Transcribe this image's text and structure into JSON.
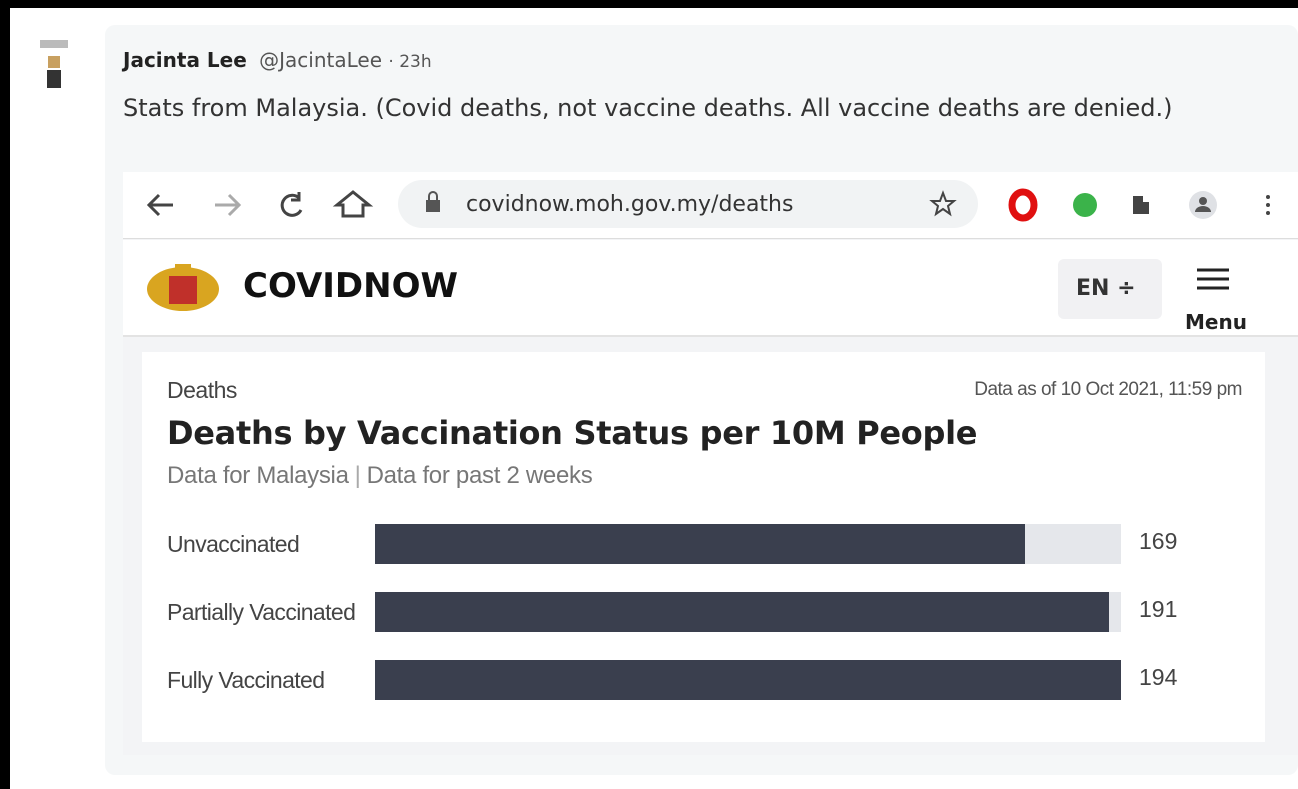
{
  "post": {
    "author": "Jacinta Lee",
    "handle": "@JacintaLee",
    "time": "· 23h",
    "text": "Stats from Malaysia. (Covid deaths, not vaccine deaths. All vaccine deaths are denied.)"
  },
  "browser": {
    "url": "covidnow.moh.gov.my/deaths"
  },
  "site": {
    "brand": "COVIDNOW",
    "language": "EN ÷",
    "menu": "Menu"
  },
  "card": {
    "section": "Deaths",
    "as_of": "Data as of 10 Oct 2021, 11:59 pm",
    "title": "Deaths by Vaccination Status per 10M People",
    "subtitle": [
      "Data for Malaysia",
      "|",
      "Data for past 2 weeks"
    ]
  },
  "chart": {
    "categories": [
      "Unvaccinated",
      "Partially Vaccinated",
      "Fully Vaccinated"
    ],
    "values": [
      169,
      191,
      194
    ]
  }
}
